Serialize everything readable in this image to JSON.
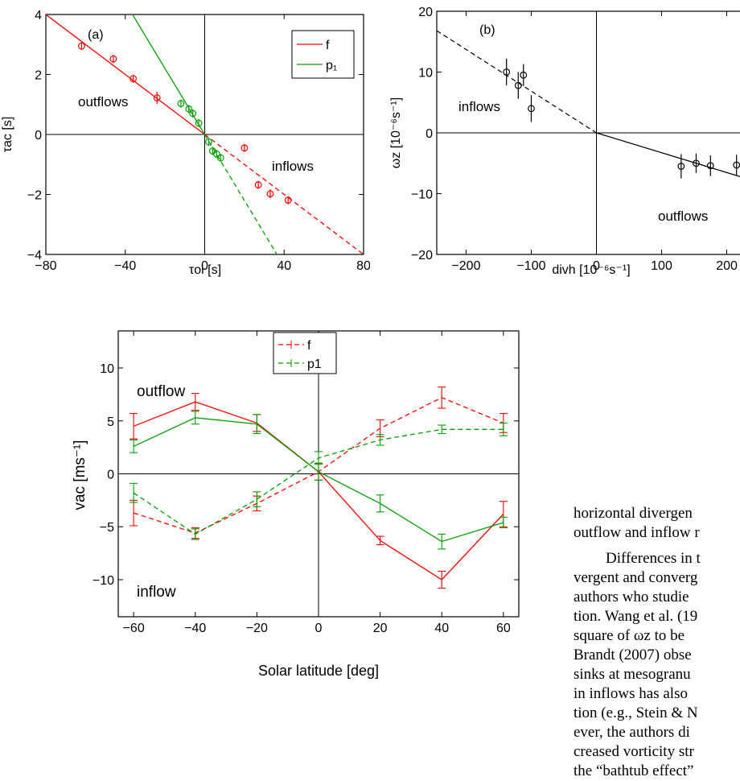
{
  "figure_panels": [
    {
      "panel_label": "(a)",
      "legend_entries": [
        "f",
        "p₁"
      ],
      "annotations": [
        "outflows",
        "inflows"
      ]
    },
    {
      "panel_label": "(b)",
      "annotations": [
        "inflows",
        "outflows"
      ]
    },
    {
      "legend_entries": [
        "f",
        "p1"
      ],
      "annotations": [
        "outflow",
        "inflow"
      ]
    }
  ],
  "chart_data": [
    {
      "type": "scatter",
      "title": "",
      "panel_label": "(a)",
      "xlabel": "τoi [s]",
      "ylabel": "τac [s]",
      "xlim": [
        -80,
        80
      ],
      "ylim": [
        -4,
        4
      ],
      "xticks": [
        "−80",
        "−40",
        "0",
        "40",
        "80"
      ],
      "yticks": [
        "−4",
        "−2",
        "0",
        "2",
        "4"
      ],
      "legend_position": "top-right",
      "axis_lines": [
        "x=0",
        "y=0"
      ],
      "colors": {
        "f": "#ff0000",
        "p1": "#00a000"
      },
      "series": [
        {
          "name": "f",
          "x": [
            -62,
            -46,
            -36,
            -24,
            20,
            27,
            33,
            42
          ],
          "y": [
            2.95,
            2.52,
            1.86,
            1.22,
            -0.45,
            -1.68,
            -1.98,
            -2.19
          ],
          "yerr": [
            0.1,
            0.1,
            0.1,
            0.2,
            0.1,
            0.1,
            0.15,
            0.1
          ],
          "fit": {
            "slope": -0.05,
            "solid_range": [
              -80,
              0
            ],
            "dashed_range": [
              0,
              80
            ]
          }
        },
        {
          "name": "p₁",
          "x": [
            -12,
            -8,
            -6,
            -3,
            2,
            4,
            6,
            8
          ],
          "y": [
            1.03,
            0.85,
            0.7,
            0.38,
            -0.25,
            -0.55,
            -0.65,
            -0.78
          ],
          "yerr": [
            0.06,
            0.06,
            0.06,
            0.06,
            0.06,
            0.06,
            0.06,
            0.06
          ],
          "fit": {
            "slope": -0.11,
            "solid_range": [
              -80,
              0
            ],
            "dashed_range": [
              0,
              80
            ]
          }
        }
      ]
    },
    {
      "type": "scatter",
      "title": "",
      "panel_label": "(b)",
      "xlabel": "divh [10⁻⁶s⁻¹]",
      "ylabel": "ωz [10⁻⁶s⁻¹]",
      "xlim": [
        -245,
        245
      ],
      "ylim": [
        -20,
        20
      ],
      "xticks": [
        "−200",
        "−100",
        "0",
        "100",
        "200"
      ],
      "yticks": [
        "−20",
        "−10",
        "0",
        "10",
        "20"
      ],
      "axis_lines": [
        "x=0",
        "y=0"
      ],
      "series": [
        {
          "name": "",
          "x": [
            -138,
            -120,
            -112,
            -100,
            130,
            153,
            175,
            215
          ],
          "y": [
            10,
            7.8,
            9.5,
            4,
            -5.5,
            -5,
            -5.4,
            -5.3
          ],
          "yerr": [
            2.2,
            2.2,
            1.8,
            2.2,
            2,
            1.6,
            1.7,
            1.7
          ],
          "fit": {
            "dashed": {
              "x": [
                -245,
                0
              ],
              "y": [
                16.8,
                0
              ]
            },
            "solid": {
              "x": [
                0,
                245
              ],
              "y": [
                0,
                -8
              ]
            }
          }
        }
      ]
    },
    {
      "type": "line",
      "title": "",
      "xlabel": "Solar latitude [deg]",
      "ylabel": "vac [ms⁻¹]",
      "xlim": [
        -65,
        65
      ],
      "ylim": [
        -13.5,
        13.5
      ],
      "xticks": [
        "−60",
        "−40",
        "−20",
        "0",
        "20",
        "40",
        "60"
      ],
      "yticks": [
        "−10",
        "−5",
        "0",
        "5",
        "10"
      ],
      "legend_position": "top-center",
      "axis_lines": [
        "x=0",
        "y=0"
      ],
      "x": [
        -60,
        -40,
        -20,
        0,
        20,
        40,
        60
      ],
      "series": [
        {
          "name": "f",
          "color": "#ff0000",
          "style": "dashed",
          "group": "inflow",
          "values": [
            -3.7,
            -5.6,
            -2.8,
            0.2,
            4.3,
            7.2,
            4.8
          ],
          "yerr": [
            1.2,
            0.5,
            0.7,
            0.8,
            0.8,
            1.0,
            0.9
          ]
        },
        {
          "name": "p1",
          "color": "#00a000",
          "style": "dashed",
          "group": "inflow",
          "values": [
            -1.8,
            -5.7,
            -2.4,
            1.5,
            3.2,
            4.2,
            4.2
          ],
          "yerr": [
            0.9,
            0.5,
            0.7,
            0.6,
            0.5,
            0.4,
            0.6
          ]
        },
        {
          "name": "f",
          "color": "#ff0000",
          "style": "solid",
          "group": "outflow",
          "values": [
            4.5,
            6.8,
            4.8,
            0.2,
            -6.3,
            -10.0,
            -3.8
          ],
          "yerr": [
            1.2,
            0.8,
            0.8,
            0.8,
            0.4,
            0.8,
            1.2
          ]
        },
        {
          "name": "p1",
          "color": "#00a000",
          "style": "solid",
          "group": "outflow",
          "values": [
            2.6,
            5.3,
            4.7,
            0.2,
            -2.8,
            -6.4,
            -4.6
          ],
          "yerr": [
            0.6,
            0.6,
            0.9,
            0.8,
            0.8,
            0.7,
            0.5
          ]
        }
      ]
    }
  ],
  "body_text": {
    "lines": [
      "horizontal divergen",
      "outflow and inflow r",
      "Differences in t",
      "vergent and converg",
      "authors who studie",
      "tion. Wang et al. (19",
      "square of ωz to be",
      "Brandt (2007) obse",
      "sinks at mesogranu",
      "in inflows has also",
      "tion (e.g., Stein & N",
      "ever, the authors di",
      "creased vorticity str",
      "the “bathtub effect”"
    ]
  }
}
